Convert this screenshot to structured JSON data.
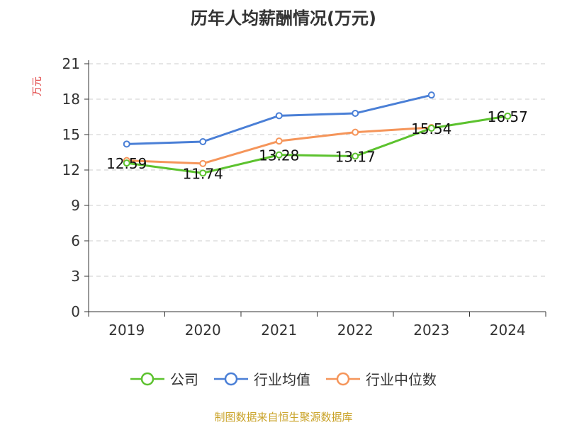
{
  "chart_data": {
    "type": "line",
    "title": "历年人均薪酬情况(万元)",
    "xlabel": "",
    "ylabel": "万元",
    "categories": [
      "2019",
      "2020",
      "2021",
      "2022",
      "2023",
      "2024"
    ],
    "ylim": [
      0,
      21
    ],
    "yticks": [
      0,
      3,
      6,
      9,
      12,
      15,
      18,
      21
    ],
    "grid": true,
    "legend_position": "bottom",
    "series": [
      {
        "name": "公司",
        "color": "#5cc22e",
        "values": [
          12.59,
          11.74,
          13.28,
          13.17,
          15.54,
          16.57
        ],
        "data_labels": [
          "12.59",
          "11.74",
          "13.28",
          "13.17",
          "15.54",
          "16.57"
        ]
      },
      {
        "name": "行业均值",
        "color": "#4a7fd6",
        "values": [
          14.2,
          14.4,
          16.6,
          16.8,
          18.35,
          null
        ]
      },
      {
        "name": "行业中位数",
        "color": "#f5955a",
        "values": [
          12.8,
          12.55,
          14.45,
          15.2,
          15.6,
          null
        ]
      }
    ]
  },
  "source": "制图数据来自恒生聚源数据库"
}
